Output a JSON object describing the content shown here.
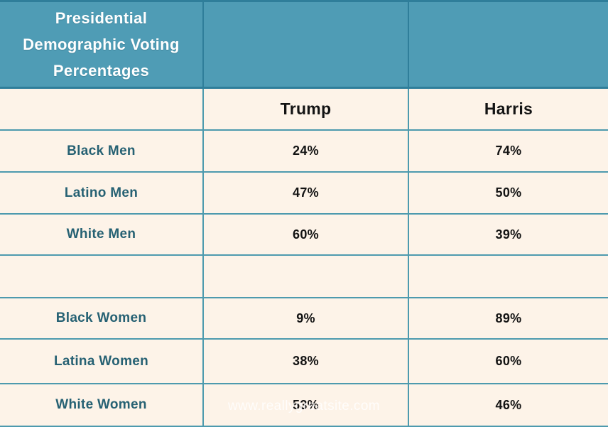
{
  "title": "Presidential Demographic Voting Percentages",
  "watermark": "www.reallygreatsite.com",
  "colors": {
    "header_background": "#4f9cb5",
    "header_border": "#2f7e9a",
    "grid_line": "#4d9aae",
    "cell_background": "#fdf3e8",
    "row_label_text": "#266173",
    "value_text": "#131313",
    "title_text": "#ffffff"
  },
  "table": {
    "columns": {
      "trump": "Trump",
      "harris": "Harris"
    },
    "rows": [
      {
        "label": "Black Men",
        "trump": "24%",
        "harris": "74%"
      },
      {
        "label": "Latino Men",
        "trump": "47%",
        "harris": "50%"
      },
      {
        "label": "White Men",
        "trump": "60%",
        "harris": "39%"
      },
      {
        "label": "",
        "trump": "",
        "harris": ""
      },
      {
        "label": "Black Women",
        "trump": "9%",
        "harris": "89%"
      },
      {
        "label": "Latina Women",
        "trump": "38%",
        "harris": "60%"
      },
      {
        "label": "White Women",
        "trump": "53%",
        "harris": "46%"
      }
    ]
  },
  "chart_data": {
    "type": "table",
    "title": "Presidential Demographic Voting Percentages",
    "categories": [
      "Black Men",
      "Latino Men",
      "White Men",
      "Black Women",
      "Latina Women",
      "White Women"
    ],
    "series": [
      {
        "name": "Trump",
        "values": [
          24,
          47,
          60,
          9,
          38,
          53
        ]
      },
      {
        "name": "Harris",
        "values": [
          74,
          50,
          39,
          89,
          60,
          46
        ]
      }
    ],
    "units": "percent",
    "notes": "Static infographic table; blank spacer row between men and women groups; watermark www.reallygreatsite.com overlaps bottom row"
  }
}
